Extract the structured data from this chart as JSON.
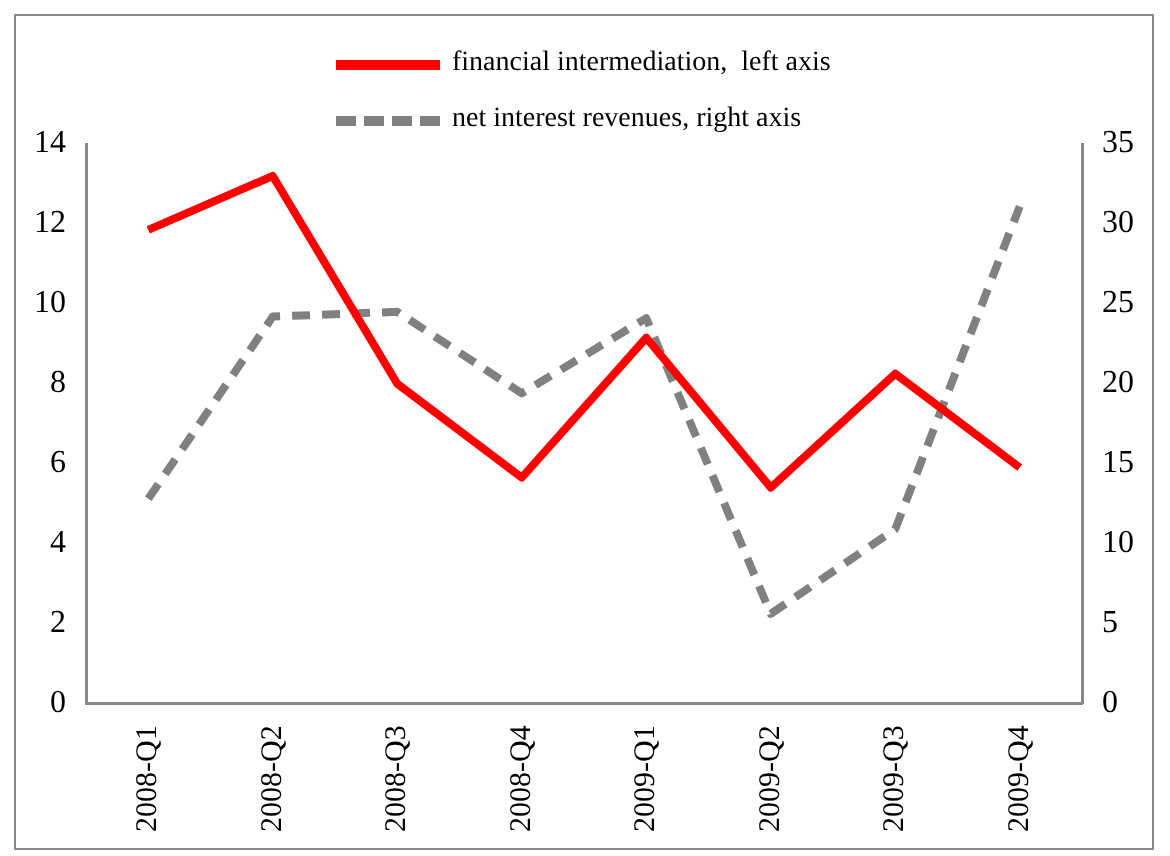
{
  "chart_data": {
    "type": "line",
    "categories": [
      "2008-Q1",
      "2008-Q2",
      "2008-Q3",
      "2008-Q4",
      "2009-Q1",
      "2009-Q2",
      "2009-Q3",
      "2009-Q4"
    ],
    "series": [
      {
        "name": "financial intermediation,  left axis",
        "color": "#ff0000",
        "line_style": "solid",
        "values": [
          11.85,
          13.2,
          8.0,
          5.65,
          9.15,
          5.4,
          8.25,
          5.9
        ]
      },
      {
        "name": "net interest revenues, right axis",
        "color": "#808080",
        "line_style": "dashed",
        "axis": "y2",
        "values": [
          12.8,
          24.2,
          24.5,
          19.4,
          24.1,
          5.6,
          10.9,
          31.1
        ]
      }
    ],
    "ylim": [
      0,
      14
    ],
    "yticks": [
      0,
      2,
      4,
      6,
      8,
      10,
      12,
      14
    ],
    "y2lim": [
      0,
      35
    ],
    "y2ticks": [
      0,
      5,
      10,
      15,
      20,
      25,
      30,
      35
    ],
    "grid": false,
    "legend": "top",
    "marker": "none"
  }
}
